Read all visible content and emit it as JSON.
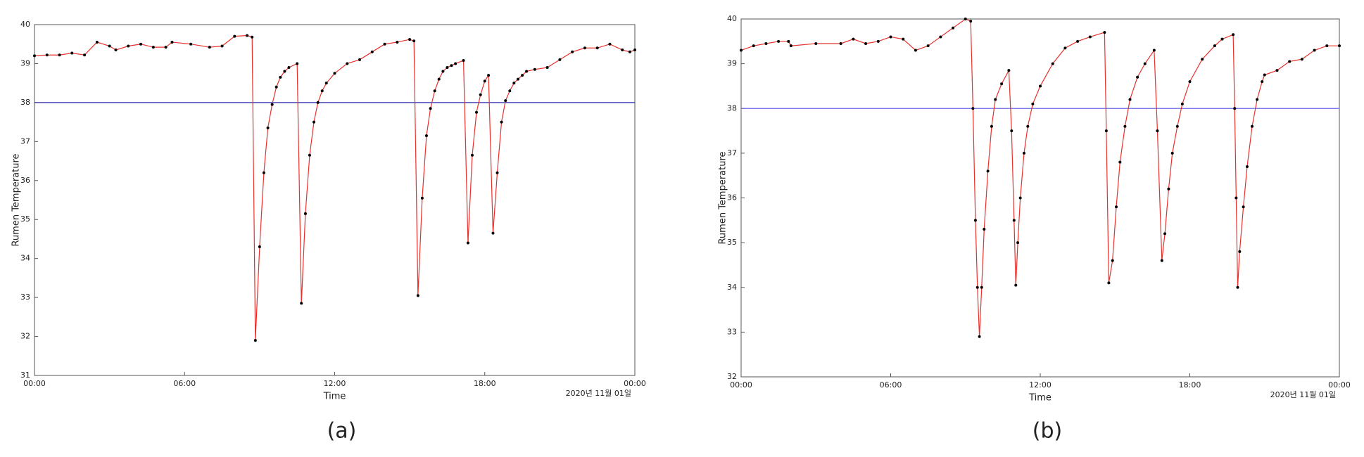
{
  "chart_data": [
    {
      "type": "line",
      "caption": "(a)",
      "xlabel": "Time",
      "ylabel": "Rumen Temperature",
      "date_label": "2020년 11월 01일",
      "x": [
        0,
        0.5,
        1,
        1.5,
        2,
        2.5,
        3,
        3.25,
        3.75,
        4.25,
        4.75,
        5.25,
        5.5,
        6.25,
        7,
        7.5,
        8,
        8.5,
        8.7,
        8.83,
        9,
        9.17,
        9.33,
        9.5,
        9.67,
        9.83,
        10,
        10.17,
        10.5,
        10.67,
        10.83,
        11,
        11.17,
        11.33,
        11.5,
        11.67,
        12,
        12.5,
        13,
        13.5,
        14,
        14.5,
        15,
        15.17,
        15.33,
        15.5,
        15.67,
        15.83,
        16,
        16.17,
        16.33,
        16.5,
        16.67,
        16.83,
        17.15,
        17.33,
        17.5,
        17.67,
        17.83,
        18,
        18.15,
        18.33,
        18.5,
        18.67,
        18.83,
        19,
        19.17,
        19.33,
        19.5,
        19.67,
        20,
        20.5,
        21,
        21.5,
        22,
        22.5,
        23,
        23.5,
        23.8,
        24
      ],
      "series": [
        {
          "color": "#e8302c",
          "marker_color": "#000000",
          "values": [
            39.2,
            39.22,
            39.22,
            39.27,
            39.22,
            39.55,
            39.45,
            39.35,
            39.45,
            39.5,
            39.42,
            39.42,
            39.55,
            39.5,
            39.42,
            39.45,
            39.7,
            39.72,
            39.68,
            31.9,
            34.3,
            36.2,
            37.35,
            37.95,
            38.4,
            38.65,
            38.8,
            38.9,
            39.0,
            32.85,
            35.15,
            36.65,
            37.5,
            38.0,
            38.3,
            38.5,
            38.75,
            39.0,
            39.1,
            39.3,
            39.5,
            39.55,
            39.62,
            39.58,
            33.05,
            35.55,
            37.15,
            37.85,
            38.3,
            38.6,
            38.8,
            38.9,
            38.95,
            39.0,
            39.08,
            34.4,
            36.65,
            37.75,
            38.2,
            38.55,
            38.7,
            34.65,
            36.2,
            37.5,
            38.05,
            38.3,
            38.5,
            38.6,
            38.7,
            38.8,
            38.85,
            38.9,
            39.1,
            39.3,
            39.4,
            39.4,
            39.5,
            39.35,
            39.3,
            39.35
          ]
        }
      ],
      "hline": 38,
      "hline_color": "#2a2ab0",
      "xlim": [
        0,
        24
      ],
      "xticks": [
        {
          "value": 0,
          "label": "00:00"
        },
        {
          "value": 6,
          "label": "06:00"
        },
        {
          "value": 12,
          "label": "12:00"
        },
        {
          "value": 18,
          "label": "18:00"
        },
        {
          "value": 24,
          "label": "00:00"
        }
      ],
      "ylim": [
        31,
        40
      ],
      "yticks": [
        31,
        32,
        33,
        34,
        35,
        36,
        37,
        38,
        39,
        40
      ]
    },
    {
      "type": "line",
      "caption": "(b)",
      "xlabel": "Time",
      "ylabel": "Rumen Temperature",
      "date_label": "2020년 11월 01일",
      "x": [
        0,
        0.5,
        1,
        1.5,
        1.9,
        2,
        3,
        4,
        4.5,
        5,
        5.5,
        6,
        6.5,
        7,
        7.5,
        8,
        8.5,
        9,
        9.21,
        9.3,
        9.4,
        9.48,
        9.56,
        9.65,
        9.75,
        9.9,
        10.05,
        10.2,
        10.45,
        10.74,
        10.85,
        10.95,
        11.02,
        11.1,
        11.2,
        11.35,
        11.5,
        11.7,
        12,
        12.5,
        13,
        13.5,
        14,
        14.58,
        14.65,
        14.75,
        14.9,
        15.05,
        15.2,
        15.4,
        15.6,
        15.9,
        16.2,
        16.57,
        16.7,
        16.88,
        17,
        17.15,
        17.3,
        17.5,
        17.7,
        18,
        18.5,
        19,
        19.3,
        19.74,
        19.8,
        19.86,
        19.92,
        20,
        20.15,
        20.3,
        20.5,
        20.7,
        20.9,
        21,
        21.5,
        22,
        22.5,
        23,
        23.5,
        24
      ],
      "series": [
        {
          "color": "#e8302c",
          "marker_color": "#000000",
          "values": [
            39.3,
            39.4,
            39.45,
            39.5,
            39.5,
            39.4,
            39.45,
            39.45,
            39.55,
            39.45,
            39.5,
            39.6,
            39.55,
            39.3,
            39.4,
            39.6,
            39.8,
            40.0,
            39.95,
            38.0,
            35.5,
            34.0,
            32.9,
            34.0,
            35.3,
            36.6,
            37.6,
            38.2,
            38.55,
            38.85,
            37.5,
            35.5,
            34.05,
            35.0,
            36.0,
            37.0,
            37.6,
            38.1,
            38.5,
            39.0,
            39.35,
            39.5,
            39.6,
            39.7,
            37.5,
            34.1,
            34.6,
            35.8,
            36.8,
            37.6,
            38.2,
            38.7,
            39.0,
            39.3,
            37.5,
            34.6,
            35.2,
            36.2,
            37.0,
            37.6,
            38.1,
            38.6,
            39.1,
            39.4,
            39.55,
            39.65,
            38.0,
            36.0,
            34.0,
            34.8,
            35.8,
            36.7,
            37.6,
            38.2,
            38.6,
            38.75,
            38.85,
            39.05,
            39.1,
            39.3,
            39.4,
            39.4
          ]
        }
      ],
      "hline": 38,
      "hline_color": "#6a6ae8",
      "xlim": [
        0,
        24
      ],
      "xticks": [
        {
          "value": 0,
          "label": "00:00"
        },
        {
          "value": 6,
          "label": "06:00"
        },
        {
          "value": 12,
          "label": "12:00"
        },
        {
          "value": 18,
          "label": "18:00"
        },
        {
          "value": 24,
          "label": "00:00"
        }
      ],
      "ylim": [
        32,
        40
      ],
      "yticks": [
        32,
        33,
        34,
        35,
        36,
        37,
        38,
        39,
        40
      ]
    }
  ]
}
